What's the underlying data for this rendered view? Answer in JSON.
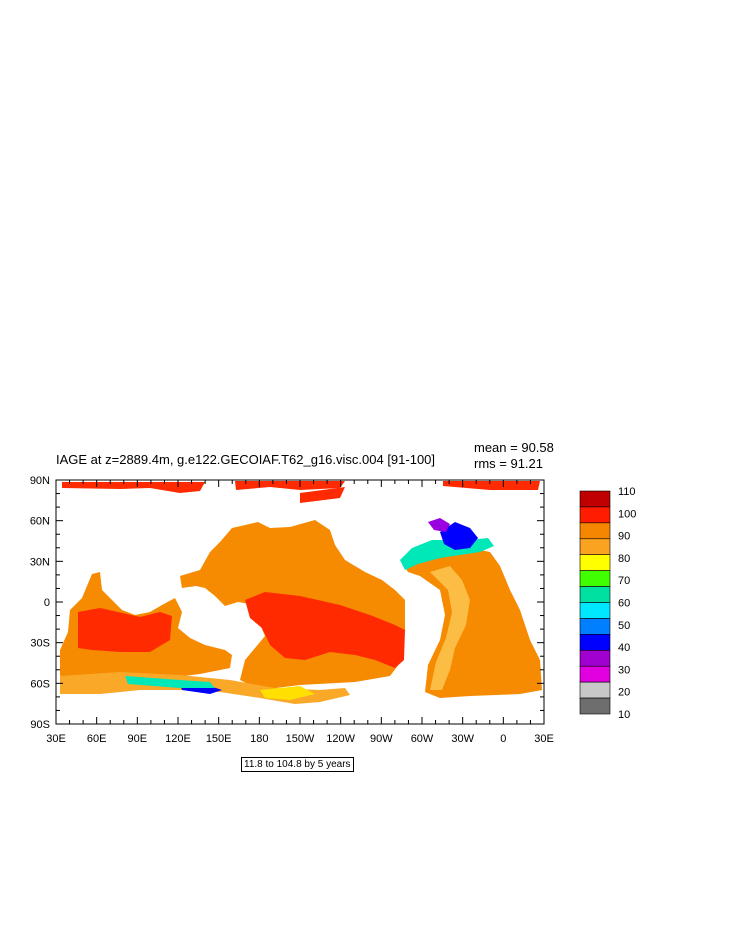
{
  "title": "IAGE at z=2889.4m, g.e122.GECOIAF.T62_g16.visc.004 [91-100]",
  "stats": {
    "mean": "mean = 90.58",
    "rms": "rms = 91.21"
  },
  "x_ticks": [
    "30E",
    "60E",
    "90E",
    "120E",
    "150E",
    "180",
    "150W",
    "120W",
    "90W",
    "60W",
    "30W",
    "0",
    "30E"
  ],
  "y_ticks": [
    "90N",
    "60N",
    "30N",
    "0",
    "30S",
    "60S",
    "90S"
  ],
  "contour_info": "11.8 to 104.8 by 5 years",
  "colorbar": {
    "labels": [
      "110",
      "100",
      "90",
      "80",
      "70",
      "60",
      "50",
      "40",
      "30",
      "20",
      "10"
    ],
    "colors": [
      "#c00000",
      "#ff1c00",
      "#f58700",
      "#f9a320",
      "#ffff00",
      "#40ff00",
      "#00e0a0",
      "#00e8ff",
      "#0080ff",
      "#0000ff",
      "#a000d0",
      "#e000e0",
      "#c8c8c8",
      "#6e6e6e"
    ]
  },
  "colors": {
    "age_100": "#ff2a00",
    "age_90": "#f68a00",
    "age_85": "#f9a828",
    "age_80": "#fbbd44",
    "age_70": "#ffe000",
    "age_60": "#00e8b8",
    "age_40": "#00a0ff",
    "age_30": "#0000ff",
    "age_25": "#9a00e0"
  }
}
